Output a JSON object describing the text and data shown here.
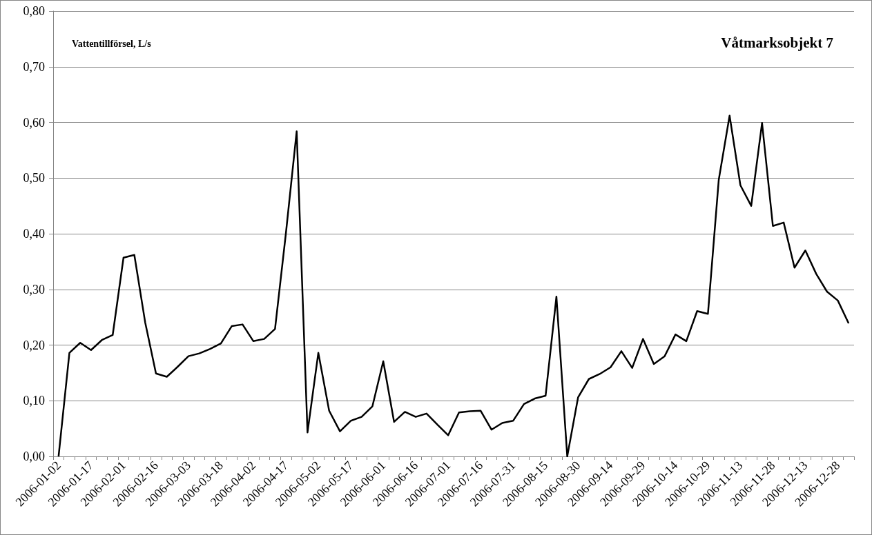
{
  "chart_data": {
    "type": "line",
    "title": "Våtmarksobjekt 7",
    "ylabel": "Vattentillförsel, L/s",
    "categories": [
      "2006-01-02",
      null,
      null,
      "2006-01-17",
      null,
      null,
      "2006-02-01",
      null,
      null,
      "2006-02-16",
      null,
      null,
      "2006-03-03",
      null,
      null,
      "2006-03-18",
      null,
      null,
      "2006-04-02",
      null,
      null,
      "2006-04-17",
      null,
      null,
      "2006-05-02",
      null,
      null,
      "2006-05-17",
      null,
      null,
      "2006-06-01",
      null,
      null,
      "2006-06-16",
      null,
      null,
      "2006-07-01",
      null,
      null,
      "2006-07-16",
      null,
      null,
      "2006-07-31",
      null,
      null,
      "2006-08-15",
      null,
      null,
      "2006-08-30",
      null,
      null,
      "2006-09-14",
      null,
      null,
      "2006-09-29",
      null,
      null,
      "2006-10-14",
      null,
      null,
      "2006-10-29",
      null,
      null,
      "2006-11-13",
      null,
      null,
      "2006-11-28",
      null,
      null,
      "2006-12-13",
      null,
      null,
      "2006-12-28",
      null
    ],
    "series": [
      {
        "color": "#000000",
        "values": [
          0,
          0.186,
          0.204,
          0.191,
          0.209,
          0.218,
          0.357,
          0.362,
          0.241,
          0.149,
          0.143,
          0.161,
          0.18,
          0.185,
          0.193,
          0.203,
          0.234,
          0.237,
          0.207,
          0.211,
          0.229,
          0.4,
          0.584,
          0.043,
          0.186,
          0.082,
          0.045,
          0.064,
          0.071,
          0.09,
          0.171,
          0.062,
          0.08,
          0.071,
          0.077,
          0.057,
          0.038,
          0.079,
          0.081,
          0.082,
          0.048,
          0.06,
          0.064,
          0.094,
          0.104,
          0.109,
          0.287,
          0,
          0.106,
          0.139,
          0.148,
          0.16,
          0.189,
          0.159,
          0.211,
          0.166,
          0.18,
          0.219,
          0.207,
          0.261,
          0.256,
          0.497,
          0.612,
          0.487,
          0.45,
          0.599,
          0.414,
          0.42,
          0.339,
          0.37,
          0.328,
          0.296,
          0.28,
          0.239
        ]
      }
    ],
    "ylim": [
      0,
      0.8
    ],
    "yticks": [
      {
        "value": 0,
        "label": "0,00"
      },
      {
        "value": 0.1,
        "label": "0,10"
      },
      {
        "value": 0.2,
        "label": "0,20"
      },
      {
        "value": 0.3,
        "label": "0,30"
      },
      {
        "value": 0.4,
        "label": "0,40"
      },
      {
        "value": 0.5,
        "label": "0,50"
      },
      {
        "value": 0.6,
        "label": "0,60"
      },
      {
        "value": 0.7,
        "label": "0,70"
      },
      {
        "value": 0.8,
        "label": "0,80"
      }
    ],
    "grid": "y",
    "marker": "none",
    "line_style": "solid"
  }
}
